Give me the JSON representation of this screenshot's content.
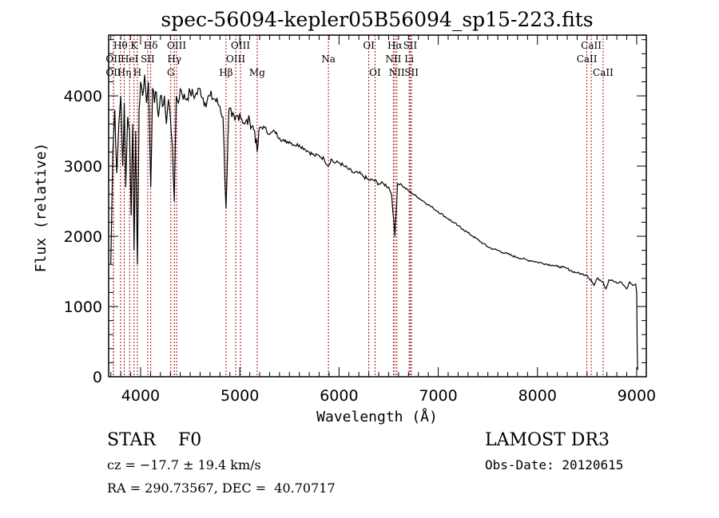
{
  "chart_data": {
    "type": "line",
    "title": "spec-56094-kepler05B56094_sp15-223.fits",
    "xlabel": "Wavelength (Å)",
    "ylabel": "Flux (relative)",
    "xlim": [
      3678,
      9097
    ],
    "ylim": [
      0,
      4865
    ],
    "xticks": [
      4000,
      5000,
      6000,
      7000,
      8000,
      9000
    ],
    "xtick_labels": [
      "4000",
      "5000",
      "6000",
      "7000",
      "8000",
      "9000"
    ],
    "yticks": [
      0,
      1000,
      2000,
      3000,
      4000
    ],
    "ytick_labels": [
      "0",
      "1000",
      "2000",
      "3000",
      "4000"
    ],
    "grid": false,
    "series": [
      {
        "name": "spectrum",
        "color": "#000000",
        "x": [
          3700,
          3720,
          3740,
          3760,
          3780,
          3800,
          3820,
          3835,
          3850,
          3870,
          3889,
          3905,
          3920,
          3934,
          3950,
          3968,
          3985,
          4000,
          4020,
          4040,
          4060,
          4080,
          4102,
          4120,
          4140,
          4160,
          4180,
          4200,
          4220,
          4240,
          4260,
          4280,
          4300,
          4320,
          4340,
          4360,
          4380,
          4400,
          4450,
          4500,
          4550,
          4600,
          4650,
          4700,
          4750,
          4800,
          4830,
          4861,
          4890,
          4920,
          4950,
          5000,
          5050,
          5100,
          5150,
          5175,
          5200,
          5250,
          5300,
          5350,
          5400,
          5450,
          5500,
          5550,
          5600,
          5650,
          5700,
          5750,
          5800,
          5850,
          5893,
          5920,
          5950,
          6000,
          6050,
          6100,
          6150,
          6200,
          6250,
          6300,
          6350,
          6400,
          6450,
          6500,
          6530,
          6563,
          6590,
          6620,
          6650,
          6700,
          6750,
          6800,
          6850,
          6900,
          6950,
          7000,
          7050,
          7100,
          7150,
          7200,
          7250,
          7300,
          7350,
          7400,
          7450,
          7500,
          7550,
          7600,
          7650,
          7700,
          7750,
          7800,
          7850,
          7900,
          7950,
          8000,
          8050,
          8100,
          8150,
          8200,
          8250,
          8300,
          8350,
          8400,
          8450,
          8498,
          8520,
          8542,
          8570,
          8600,
          8630,
          8662,
          8690,
          8720,
          8750,
          8780,
          8810,
          8840,
          8870,
          8900,
          8930,
          8960,
          8990,
          9000,
          9005,
          9010
        ],
        "values": [
          1600,
          3200,
          3800,
          2900,
          3600,
          4000,
          3000,
          3900,
          2700,
          3700,
          3500,
          2300,
          3600,
          1800,
          3500,
          1600,
          3800,
          4200,
          4000,
          4300,
          3900,
          4200,
          2700,
          4100,
          3900,
          4050,
          3700,
          4000,
          3850,
          4000,
          3600,
          3950,
          3700,
          3300,
          2500,
          4000,
          3900,
          4100,
          3950,
          4050,
          4000,
          4100,
          3900,
          4000,
          3950,
          3850,
          3700,
          2400,
          3800,
          3700,
          3650,
          3750,
          3600,
          3650,
          3500,
          3200,
          3550,
          3550,
          3450,
          3500,
          3400,
          3350,
          3350,
          3300,
          3300,
          3250,
          3200,
          3150,
          3150,
          3100,
          3000,
          3100,
          3050,
          3050,
          3000,
          2950,
          2900,
          2900,
          2850,
          2800,
          2800,
          2750,
          2750,
          2700,
          2600,
          2000,
          2750,
          2750,
          2700,
          2650,
          2600,
          2550,
          2500,
          2450,
          2400,
          2350,
          2300,
          2250,
          2200,
          2150,
          2100,
          2050,
          2000,
          1950,
          1900,
          1850,
          1820,
          1800,
          1770,
          1750,
          1720,
          1700,
          1680,
          1660,
          1650,
          1630,
          1620,
          1600,
          1590,
          1570,
          1560,
          1540,
          1500,
          1480,
          1460,
          1450,
          1400,
          1380,
          1300,
          1400,
          1380,
          1350,
          1250,
          1380,
          1380,
          1350,
          1330,
          1350,
          1300,
          1250,
          1350,
          1300,
          1320,
          1200,
          400,
          100
        ]
      }
    ],
    "line_markers": [
      {
        "label": "O II",
        "text": "OII",
        "wavelength": 3727,
        "row": 2
      },
      {
        "label": "O II",
        "text": "OII",
        "wavelength": 3727,
        "row": 3
      },
      {
        "label": "H theta",
        "text": "Hθ",
        "wavelength": 3798,
        "row": 1
      },
      {
        "label": "H eta",
        "text": "Hη",
        "wavelength": 3835,
        "row": 3
      },
      {
        "label": "He I",
        "text": "HeI",
        "wavelength": 3889,
        "row": 2
      },
      {
        "label": "K",
        "text": "K",
        "wavelength": 3934,
        "row": 1
      },
      {
        "label": "H",
        "text": "H",
        "wavelength": 3968,
        "row": 3
      },
      {
        "label": "S II",
        "text": "SII",
        "wavelength": 4072,
        "row": 2
      },
      {
        "label": "H delta",
        "text": "Hδ",
        "wavelength": 4102,
        "row": 1
      },
      {
        "label": "G",
        "text": "G",
        "wavelength": 4304,
        "row": 3
      },
      {
        "label": "H gamma",
        "text": "Hγ",
        "wavelength": 4340,
        "row": 2
      },
      {
        "label": "O III",
        "text": "OIII",
        "wavelength": 4363,
        "row": 1
      },
      {
        "label": "H beta",
        "text": "Hβ",
        "wavelength": 4861,
        "row": 3
      },
      {
        "label": "O III",
        "text": "OIII",
        "wavelength": 4959,
        "row": 2
      },
      {
        "label": "O III",
        "text": "OIII",
        "wavelength": 5007,
        "row": 1
      },
      {
        "label": "Mg",
        "text": "Mg",
        "wavelength": 5175,
        "row": 3
      },
      {
        "label": "Na",
        "text": "Na",
        "wavelength": 5893,
        "row": 2
      },
      {
        "label": "O I",
        "text": "OI",
        "wavelength": 6300,
        "row": 1
      },
      {
        "label": "O I",
        "text": "OI",
        "wavelength": 6363,
        "row": 3
      },
      {
        "label": "N II",
        "text": "NII",
        "wavelength": 6548,
        "row": 2
      },
      {
        "label": "H alpha",
        "text": "Hα",
        "wavelength": 6563,
        "row": 1
      },
      {
        "label": "N II",
        "text": "NII",
        "wavelength": 6583,
        "row": 3
      },
      {
        "label": "Li",
        "text": "Li",
        "wavelength": 6707,
        "row": 2
      },
      {
        "label": "S II",
        "text": "SII",
        "wavelength": 6717,
        "row": 1
      },
      {
        "label": "S II",
        "text": "SII",
        "wavelength": 6731,
        "row": 3
      },
      {
        "label": "Ca II",
        "text": "CaII",
        "wavelength": 8498,
        "row": 2
      },
      {
        "label": "Ca II",
        "text": "CaII",
        "wavelength": 8542,
        "row": 1
      },
      {
        "label": "Ca II",
        "text": "CaII",
        "wavelength": 8662,
        "row": 3
      }
    ],
    "marker_color": "#a01010"
  },
  "info": {
    "object_class": "STAR",
    "subclass": "F0",
    "redshift": "cz = −17.7 ± 19.4 km/s",
    "coords": "RA = 290.73567, DEC =  40.70717",
    "survey": "LAMOST DR3",
    "obs_date": "Obs-Date: 20120615"
  }
}
